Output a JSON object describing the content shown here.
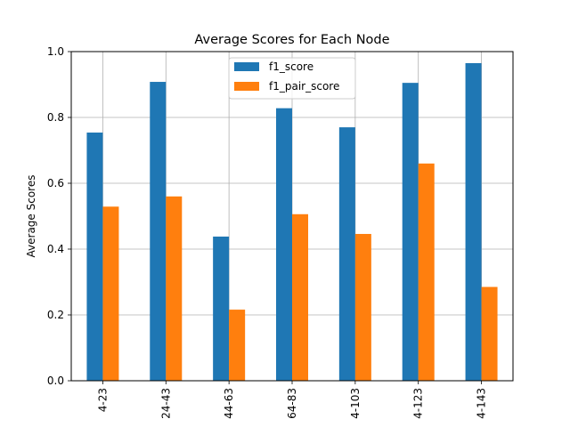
{
  "chart_data": {
    "type": "bar",
    "title": "Average Scores for Each Node",
    "xlabel": "",
    "ylabel": "Average Scores",
    "categories": [
      "4-23",
      "24-43",
      "44-63",
      "64-83",
      "4-103",
      "4-123",
      "4-143"
    ],
    "series": [
      {
        "name": "f1_score",
        "color": "#1f77b4",
        "values": [
          0.754,
          0.908,
          0.438,
          0.828,
          0.77,
          0.905,
          0.965
        ]
      },
      {
        "name": "f1_pair_score",
        "color": "#ff7f0e",
        "values": [
          0.529,
          0.56,
          0.216,
          0.506,
          0.446,
          0.66,
          0.285
        ]
      }
    ],
    "ylim": [
      0.0,
      1.0
    ],
    "yticks": [
      "0.0",
      "0.2",
      "0.4",
      "0.6",
      "0.8",
      "1.0"
    ],
    "grid": true,
    "legend_position": "top-center"
  }
}
